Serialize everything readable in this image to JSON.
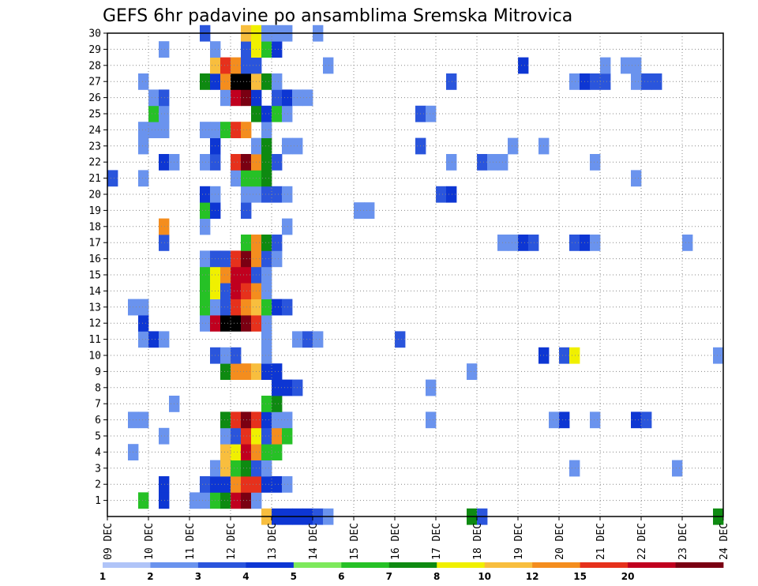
{
  "chart_data": {
    "type": "heatmap",
    "title": "GEFS 6hr padavine po ansamblima Sremska Mitrovica",
    "x_ticks": [
      "09 DEC",
      "10 DEC",
      "11 DEC",
      "12 DEC",
      "13 DEC",
      "14 DEC",
      "15 DEC",
      "16 DEC",
      "17 DEC",
      "18 DEC",
      "19 DEC",
      "20 DEC",
      "21 DEC",
      "22 DEC",
      "23 DEC",
      "24 DEC"
    ],
    "y_ticks": [
      "1",
      "2",
      "3",
      "4",
      "5",
      "6",
      "7",
      "8",
      "9",
      "10",
      "11",
      "12",
      "13",
      "14",
      "15",
      "16",
      "17",
      "18",
      "19",
      "20",
      "21",
      "22",
      "23",
      "24",
      "25",
      "26",
      "27",
      "28",
      "29",
      "30"
    ],
    "y_range": [
      0,
      30
    ],
    "grid": true,
    "steps_per_day": 4,
    "colorbar_labels": [
      "1",
      "2",
      "3",
      "4",
      "5",
      "6",
      "7",
      "8",
      "10",
      "12",
      "15",
      "20"
    ],
    "colorbar_colors": [
      "#b0c4f8",
      "#6a93ee",
      "#2a55dc",
      "#0d36d3",
      "#7de95b",
      "#26c126",
      "#0e8a11",
      "#f0f000",
      "#f8be3e",
      "#f48d1e",
      "#e6311c",
      "#c0001f",
      "#7a0012"
    ],
    "rows": [
      {
        "y": 0,
        "cells": [
          [
            15,
            8
          ],
          [
            16,
            3
          ],
          [
            17,
            3
          ],
          [
            18,
            3
          ],
          [
            19,
            3
          ],
          [
            20,
            2
          ],
          [
            21,
            1
          ],
          [
            35,
            6
          ],
          [
            36,
            2
          ],
          [
            59,
            6
          ]
        ]
      },
      {
        "y": 1,
        "cells": [
          [
            3,
            5
          ],
          [
            5,
            3
          ],
          [
            8,
            1
          ],
          [
            9,
            1
          ],
          [
            10,
            5
          ],
          [
            11,
            6
          ],
          [
            12,
            11
          ],
          [
            13,
            12
          ],
          [
            14,
            1
          ]
        ]
      },
      {
        "y": 2,
        "cells": [
          [
            5,
            3
          ],
          [
            9,
            2
          ],
          [
            10,
            3
          ],
          [
            11,
            3
          ],
          [
            12,
            9
          ],
          [
            13,
            10
          ],
          [
            14,
            10
          ],
          [
            15,
            3
          ],
          [
            16,
            3
          ],
          [
            17,
            1
          ]
        ]
      },
      {
        "y": 3,
        "cells": [
          [
            10,
            1
          ],
          [
            11,
            8
          ],
          [
            12,
            5
          ],
          [
            13,
            6
          ],
          [
            14,
            2
          ],
          [
            15,
            1
          ],
          [
            45,
            1
          ],
          [
            55,
            1
          ]
        ]
      },
      {
        "y": 4,
        "cells": [
          [
            2,
            1
          ],
          [
            11,
            8
          ],
          [
            12,
            7
          ],
          [
            13,
            11
          ],
          [
            14,
            9
          ],
          [
            15,
            5
          ],
          [
            16,
            5
          ]
        ]
      },
      {
        "y": 5,
        "cells": [
          [
            5,
            1
          ],
          [
            11,
            1
          ],
          [
            12,
            2
          ],
          [
            13,
            10
          ],
          [
            14,
            7
          ],
          [
            15,
            2
          ],
          [
            16,
            9
          ],
          [
            17,
            5
          ]
        ]
      },
      {
        "y": 6,
        "cells": [
          [
            2,
            1
          ],
          [
            3,
            1
          ],
          [
            11,
            6
          ],
          [
            12,
            10
          ],
          [
            13,
            12
          ],
          [
            14,
            10
          ],
          [
            15,
            3
          ],
          [
            16,
            1
          ],
          [
            17,
            1
          ],
          [
            31,
            1
          ],
          [
            43,
            1
          ],
          [
            44,
            3
          ],
          [
            47,
            1
          ],
          [
            51,
            3
          ],
          [
            52,
            2
          ]
        ]
      },
      {
        "y": 7,
        "cells": [
          [
            6,
            1
          ],
          [
            15,
            5
          ],
          [
            16,
            6
          ]
        ]
      },
      {
        "y": 8,
        "cells": [
          [
            16,
            3
          ],
          [
            17,
            3
          ],
          [
            18,
            2
          ],
          [
            31,
            1
          ]
        ]
      },
      {
        "y": 9,
        "cells": [
          [
            11,
            6
          ],
          [
            12,
            9
          ],
          [
            13,
            9
          ],
          [
            14,
            8
          ],
          [
            15,
            3
          ],
          [
            16,
            3
          ],
          [
            35,
            1
          ]
        ]
      },
      {
        "y": 10,
        "cells": [
          [
            10,
            2
          ],
          [
            11,
            1
          ],
          [
            12,
            2
          ],
          [
            15,
            1
          ],
          [
            42,
            3
          ],
          [
            44,
            2
          ],
          [
            45,
            7
          ],
          [
            59,
            1
          ]
        ]
      },
      {
        "y": 11,
        "cells": [
          [
            3,
            1
          ],
          [
            4,
            3
          ],
          [
            5,
            1
          ],
          [
            15,
            1
          ],
          [
            18,
            1
          ],
          [
            19,
            2
          ],
          [
            20,
            1
          ],
          [
            28,
            2
          ]
        ]
      },
      {
        "y": 12,
        "cells": [
          [
            3,
            3
          ],
          [
            9,
            1
          ],
          [
            10,
            11
          ],
          [
            11,
            13
          ],
          [
            12,
            13
          ],
          [
            13,
            12
          ],
          [
            14,
            10
          ],
          [
            15,
            1
          ]
        ]
      },
      {
        "y": 13,
        "cells": [
          [
            2,
            1
          ],
          [
            3,
            1
          ],
          [
            9,
            5
          ],
          [
            10,
            1
          ],
          [
            11,
            2
          ],
          [
            12,
            10
          ],
          [
            13,
            9
          ],
          [
            14,
            8
          ],
          [
            15,
            5
          ],
          [
            16,
            3
          ],
          [
            17,
            2
          ]
        ]
      },
      {
        "y": 14,
        "cells": [
          [
            9,
            5
          ],
          [
            10,
            7
          ],
          [
            11,
            2
          ],
          [
            12,
            11
          ],
          [
            13,
            10
          ],
          [
            14,
            9
          ],
          [
            15,
            1
          ]
        ]
      },
      {
        "y": 15,
        "cells": [
          [
            9,
            5
          ],
          [
            10,
            7
          ],
          [
            11,
            9
          ],
          [
            12,
            11
          ],
          [
            13,
            11
          ],
          [
            14,
            2
          ],
          [
            15,
            1
          ]
        ]
      },
      {
        "y": 16,
        "cells": [
          [
            9,
            1
          ],
          [
            10,
            2
          ],
          [
            11,
            2
          ],
          [
            12,
            10
          ],
          [
            13,
            12
          ],
          [
            14,
            9
          ],
          [
            15,
            2
          ],
          [
            16,
            1
          ]
        ]
      },
      {
        "y": 17,
        "cells": [
          [
            5,
            2
          ],
          [
            13,
            5
          ],
          [
            14,
            9
          ],
          [
            15,
            6
          ],
          [
            16,
            2
          ],
          [
            38,
            1
          ],
          [
            39,
            1
          ],
          [
            40,
            3
          ],
          [
            41,
            2
          ],
          [
            45,
            2
          ],
          [
            46,
            3
          ],
          [
            47,
            1
          ],
          [
            56,
            1
          ]
        ]
      },
      {
        "y": 18,
        "cells": [
          [
            5,
            9
          ],
          [
            9,
            1
          ],
          [
            17,
            1
          ]
        ]
      },
      {
        "y": 19,
        "cells": [
          [
            9,
            5
          ],
          [
            10,
            3
          ],
          [
            13,
            2
          ],
          [
            24,
            1
          ],
          [
            25,
            1
          ]
        ]
      },
      {
        "y": 20,
        "cells": [
          [
            9,
            3
          ],
          [
            10,
            1
          ],
          [
            13,
            1
          ],
          [
            14,
            1
          ],
          [
            15,
            2
          ],
          [
            16,
            2
          ],
          [
            17,
            1
          ],
          [
            32,
            2
          ],
          [
            33,
            3
          ]
        ]
      },
      {
        "y": 21,
        "cells": [
          [
            0,
            2
          ],
          [
            3,
            1
          ],
          [
            12,
            1
          ],
          [
            13,
            5
          ],
          [
            14,
            5
          ],
          [
            15,
            6
          ],
          [
            51,
            1
          ]
        ]
      },
      {
        "y": 22,
        "cells": [
          [
            5,
            3
          ],
          [
            6,
            1
          ],
          [
            9,
            1
          ],
          [
            10,
            2
          ],
          [
            12,
            10
          ],
          [
            13,
            12
          ],
          [
            14,
            9
          ],
          [
            15,
            6
          ],
          [
            16,
            2
          ],
          [
            33,
            1
          ],
          [
            36,
            2
          ],
          [
            37,
            1
          ],
          [
            38,
            1
          ],
          [
            47,
            1
          ]
        ]
      },
      {
        "y": 23,
        "cells": [
          [
            3,
            1
          ],
          [
            10,
            3
          ],
          [
            14,
            1
          ],
          [
            15,
            6
          ],
          [
            17,
            1
          ],
          [
            18,
            1
          ],
          [
            30,
            2
          ],
          [
            39,
            1
          ],
          [
            42,
            1
          ]
        ]
      },
      {
        "y": 24,
        "cells": [
          [
            3,
            1
          ],
          [
            4,
            1
          ],
          [
            5,
            1
          ],
          [
            9,
            1
          ],
          [
            10,
            1
          ],
          [
            11,
            5
          ],
          [
            12,
            10
          ],
          [
            13,
            9
          ],
          [
            15,
            1
          ]
        ]
      },
      {
        "y": 25,
        "cells": [
          [
            4,
            5
          ],
          [
            5,
            1
          ],
          [
            14,
            6
          ],
          [
            15,
            3
          ],
          [
            16,
            5
          ],
          [
            17,
            1
          ],
          [
            30,
            2
          ],
          [
            31,
            1
          ]
        ]
      },
      {
        "y": 26,
        "cells": [
          [
            4,
            1
          ],
          [
            5,
            2
          ],
          [
            11,
            1
          ],
          [
            12,
            11
          ],
          [
            13,
            12
          ],
          [
            14,
            3
          ],
          [
            16,
            2
          ],
          [
            17,
            3
          ],
          [
            18,
            1
          ],
          [
            19,
            1
          ]
        ]
      },
      {
        "y": 27,
        "cells": [
          [
            3,
            1
          ],
          [
            9,
            6
          ],
          [
            10,
            3
          ],
          [
            11,
            9
          ],
          [
            12,
            13
          ],
          [
            13,
            13
          ],
          [
            14,
            8
          ],
          [
            15,
            6
          ],
          [
            16,
            1
          ],
          [
            33,
            2
          ],
          [
            45,
            1
          ],
          [
            46,
            3
          ],
          [
            47,
            2
          ],
          [
            48,
            2
          ],
          [
            51,
            1
          ],
          [
            52,
            2
          ],
          [
            53,
            2
          ]
        ]
      },
      {
        "y": 28,
        "cells": [
          [
            10,
            8
          ],
          [
            11,
            10
          ],
          [
            12,
            9
          ],
          [
            13,
            2
          ],
          [
            14,
            2
          ],
          [
            21,
            1
          ],
          [
            40,
            3
          ],
          [
            48,
            1
          ],
          [
            50,
            1
          ],
          [
            51,
            1
          ]
        ]
      },
      {
        "y": 29,
        "cells": [
          [
            5,
            1
          ],
          [
            10,
            1
          ],
          [
            13,
            2
          ],
          [
            14,
            7
          ],
          [
            15,
            5
          ],
          [
            16,
            3
          ]
        ]
      },
      {
        "y": 30,
        "cells": [
          [
            9,
            2
          ],
          [
            13,
            8
          ],
          [
            14,
            7
          ],
          [
            15,
            1
          ],
          [
            16,
            1
          ],
          [
            17,
            1
          ],
          [
            20,
            1
          ]
        ]
      }
    ]
  }
}
